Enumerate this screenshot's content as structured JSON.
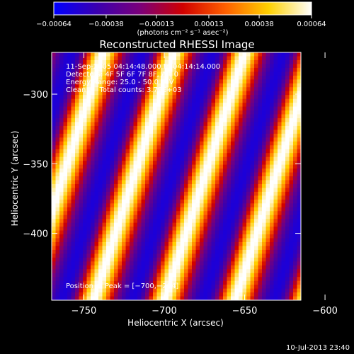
{
  "chart_data": {
    "type": "heatmap",
    "title": "Reconstructed RHESSI Image",
    "xlabel": "Heliocentric X (arcsec)",
    "ylabel": "Heliocentric Y (arcsec)",
    "xlim": [
      -770,
      -615
    ],
    "ylim": [
      -448,
      -270
    ],
    "x_ticks": [
      -750,
      -700,
      -650,
      -600
    ],
    "x_tick_labels": [
      "−750",
      "−700",
      "−650",
      "−600"
    ],
    "y_ticks": [
      -300,
      -350,
      -400
    ],
    "y_tick_labels": [
      "−300",
      "−350",
      "−400"
    ],
    "colorbar": {
      "min": -0.00064,
      "max": 0.00064,
      "ticks": [
        -0.00064,
        -0.00038,
        -0.00013,
        0.00013,
        0.00038,
        0.00064
      ],
      "tick_labels": [
        "−0.00064",
        "−0.00038",
        "−0.00013",
        "0.00013",
        "0.00038",
        "0.00064"
      ],
      "unit": "(photons cm⁻² s⁻¹ asec⁻²)",
      "colors": [
        "#0000ff",
        "#3a00b0",
        "#7a007a",
        "#d00000",
        "#ff6000",
        "#ffd000",
        "#ffffff"
      ]
    },
    "annotations": [
      "11-Sep-2005 04:14:48.000 to 04:14:14.000",
      "Detectors: 4F 5F 6F 7F 8F, Att 0",
      "Energy Range: 25.0 - 50.0 keV",
      "Clean      Total counts: 3.79E+03"
    ],
    "peak_label": "Position of Peak = [−700,−294]",
    "peak_position": [
      -700,
      -294
    ],
    "pattern": {
      "description_of_values": "periodic diagonal fringes",
      "band_period_x": 44,
      "band_slope_x_per_y": 0.28,
      "amplitude": 0.00064
    }
  },
  "footer": {
    "timestamp": "10-Jul-2013 23:40"
  }
}
